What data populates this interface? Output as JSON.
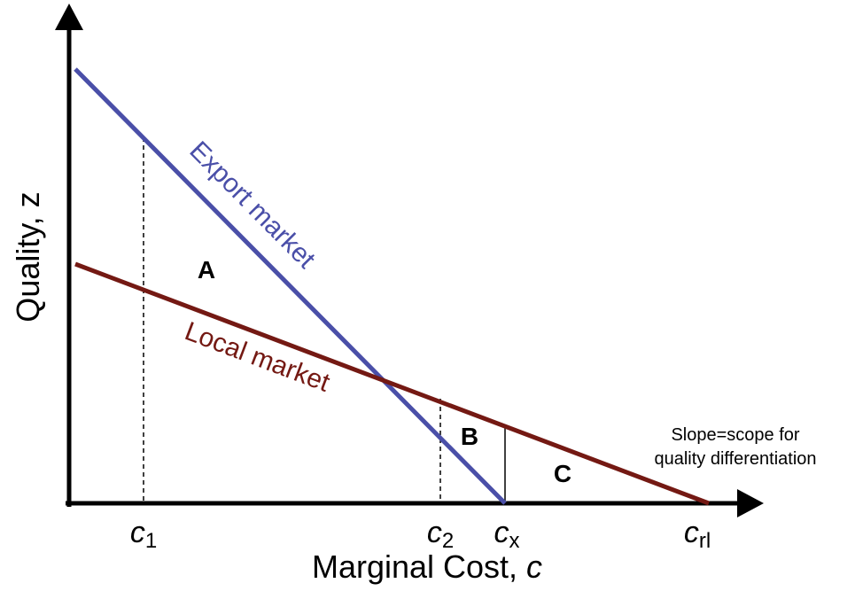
{
  "axes": {
    "y_label": "Quality, z",
    "x_label": {
      "text": "Marginal Cost, ",
      "symbol": "c"
    }
  },
  "ticks": [
    {
      "main": "c",
      "sub": "1"
    },
    {
      "main": "c",
      "sub": "2"
    },
    {
      "main": "c",
      "sub": "x"
    },
    {
      "main": "c",
      "sub": "rl"
    }
  ],
  "lines": {
    "export": "Export market",
    "local": "Local market"
  },
  "regions": [
    "A",
    "B",
    "C"
  ],
  "annotation": [
    "Slope=scope for",
    "quality differentiation"
  ]
}
